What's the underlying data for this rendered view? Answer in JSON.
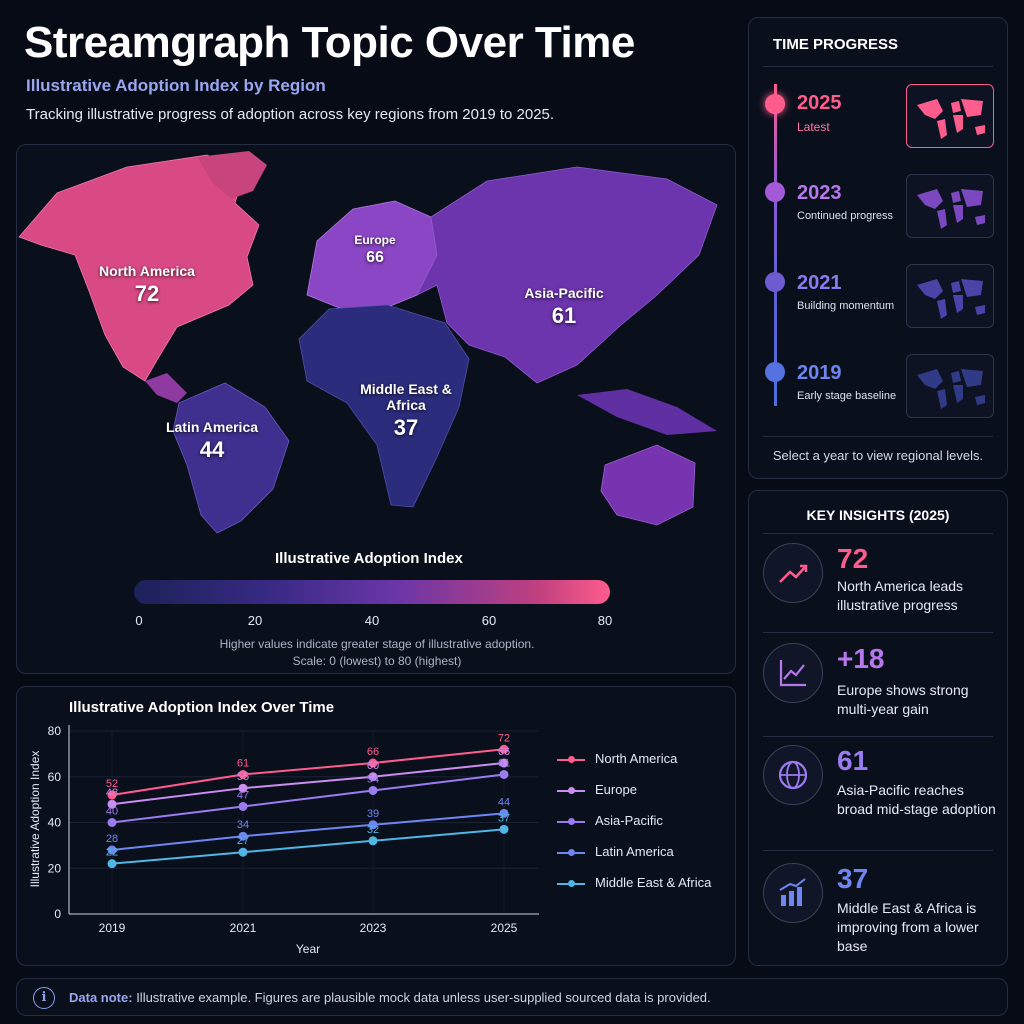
{
  "header": {
    "title": "Streamgraph Topic Over Time",
    "subtitle": "Illustrative Adoption Index by Region",
    "description": "Tracking illustrative progress of adoption across key regions from 2019 to 2025."
  },
  "map": {
    "regions": [
      {
        "name": "North America",
        "value": "72",
        "color": "#d94a84"
      },
      {
        "name": "Europe",
        "value": "66",
        "color": "#8a46c4"
      },
      {
        "name": "Asia-Pacific",
        "value": "61",
        "color": "#6c34ad"
      },
      {
        "name": "Latin America",
        "value": "44",
        "color": "#3f2f8f"
      },
      {
        "name": "Middle East & Africa",
        "value": "37",
        "color": "#2b2c7c"
      }
    ],
    "scale_title": "Illustrative Adoption Index",
    "scale_ticks": [
      "0",
      "20",
      "40",
      "60",
      "80"
    ],
    "note_line1": "Higher values indicate greater stage of illustrative adoption.",
    "note_line2": "Scale: 0 (lowest) to 80 (highest)"
  },
  "chart_data": {
    "type": "line",
    "title": "Illustrative Adoption Index Over Time",
    "xlabel": "Year",
    "ylabel": "Illustrative Adoption Index",
    "x": [
      "2019",
      "2021",
      "2023",
      "2025"
    ],
    "ylim": [
      0,
      80
    ],
    "yticks": [
      "0",
      "20",
      "40",
      "60",
      "80"
    ],
    "legend_position": "right",
    "series": [
      {
        "name": "North America",
        "color": "#ff5c8e",
        "values": [
          52,
          61,
          66,
          72
        ]
      },
      {
        "name": "Europe",
        "color": "#c98ef0",
        "values": [
          48,
          55,
          60,
          66
        ]
      },
      {
        "name": "Asia-Pacific",
        "color": "#9a7cf0",
        "values": [
          40,
          47,
          54,
          61
        ]
      },
      {
        "name": "Latin America",
        "color": "#6f86f2",
        "values": [
          28,
          34,
          39,
          44
        ]
      },
      {
        "name": "Middle East & Africa",
        "color": "#4fb6e6",
        "values": [
          22,
          27,
          32,
          37
        ]
      }
    ]
  },
  "time_progress": {
    "title": "TIME PROGRESS",
    "items": [
      {
        "year": "2025",
        "caption": "Latest",
        "color": "#ff5c8e"
      },
      {
        "year": "2023",
        "caption": "Continued progress",
        "color": "#a25ad8"
      },
      {
        "year": "2021",
        "caption": "Building momentum",
        "color": "#6e5bd2"
      },
      {
        "year": "2019",
        "caption": "Early stage baseline",
        "color": "#5472e0"
      }
    ],
    "footer": "Select a year to view regional levels."
  },
  "insights": {
    "title": "KEY INSIGHTS (2025)",
    "items": [
      {
        "value": "72",
        "text": "North America leads illustrative progress",
        "color": "#ff5c8e",
        "icon": "trend-up-icon"
      },
      {
        "value": "+18",
        "text": "Europe shows strong multi-year gain",
        "color": "#b678ec",
        "icon": "line-chart-icon"
      },
      {
        "value": "61",
        "text": "Asia-Pacific reaches broad mid-stage adoption",
        "color": "#9a7cf0",
        "icon": "globe-icon"
      },
      {
        "value": "37",
        "text": "Middle East & Africa is improving from a lower base",
        "color": "#6f86f2",
        "icon": "bar-chart-icon"
      }
    ]
  },
  "data_note": {
    "label": "Data note:",
    "text": "Illustrative example. Figures are plausible mock data unless user-supplied sourced data is provided."
  }
}
